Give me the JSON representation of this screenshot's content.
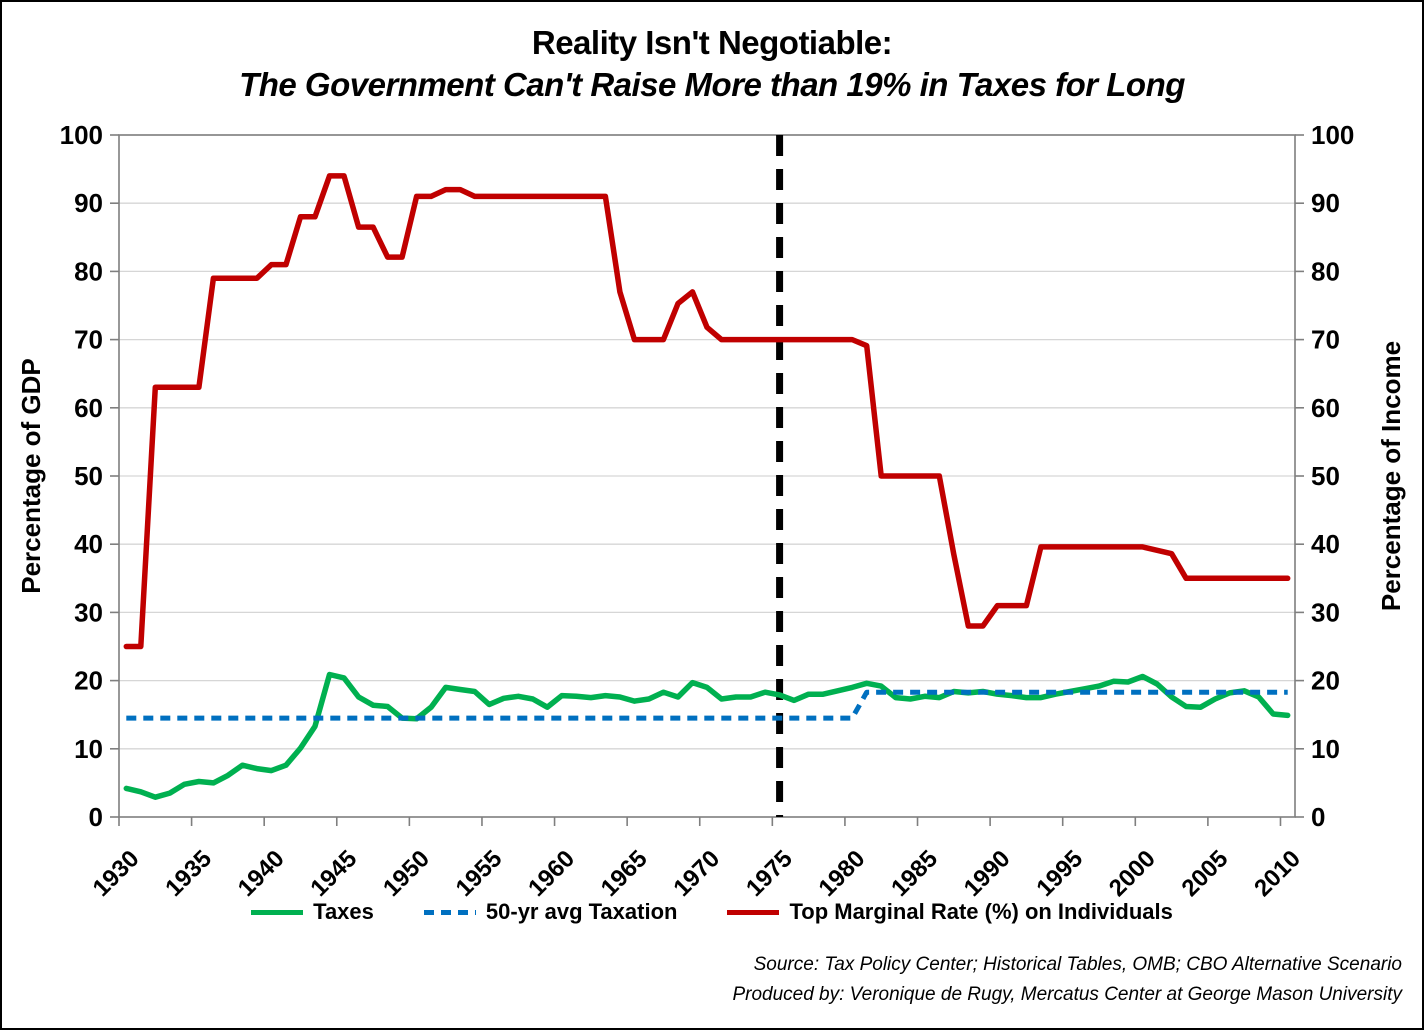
{
  "chart_data": {
    "type": "line",
    "title_line1": "Reality Isn't Negotiable:",
    "title_line2": "The Government Can't Raise More than 19% in Taxes for Long",
    "ylabel_left": "Percentage of GDP",
    "ylabel_right": "Percentage of Income",
    "ylim": [
      0,
      100
    ],
    "ytick_step": 10,
    "grid": "horizontal",
    "legend_position": "bottom",
    "x_ticks": [
      1930,
      1935,
      1940,
      1945,
      1950,
      1955,
      1960,
      1965,
      1970,
      1975,
      1980,
      1985,
      1990,
      1995,
      2000,
      2005,
      2010
    ],
    "years": [
      1930,
      1931,
      1932,
      1933,
      1934,
      1935,
      1936,
      1937,
      1938,
      1939,
      1940,
      1941,
      1942,
      1943,
      1944,
      1945,
      1946,
      1947,
      1948,
      1949,
      1950,
      1951,
      1952,
      1953,
      1954,
      1955,
      1956,
      1957,
      1958,
      1959,
      1960,
      1961,
      1962,
      1963,
      1964,
      1965,
      1966,
      1967,
      1968,
      1969,
      1970,
      1971,
      1972,
      1973,
      1974,
      1975,
      1976,
      1977,
      1978,
      1979,
      1980,
      1981,
      1982,
      1983,
      1984,
      1985,
      1986,
      1987,
      1988,
      1989,
      1990,
      1991,
      1992,
      1993,
      1994,
      1995,
      1996,
      1997,
      1998,
      1999,
      2000,
      2001,
      2002,
      2003,
      2004,
      2005,
      2006,
      2007,
      2008,
      2009,
      2010
    ],
    "series": [
      {
        "name": "Taxes",
        "color": "#00B050",
        "style": "solid",
        "values": [
          4.2,
          3.7,
          2.9,
          3.5,
          4.8,
          5.2,
          5.0,
          6.1,
          7.6,
          7.1,
          6.8,
          7.6,
          10.1,
          13.3,
          20.9,
          20.4,
          17.6,
          16.4,
          16.2,
          14.5,
          14.4,
          16.1,
          19.0,
          18.7,
          18.4,
          16.5,
          17.4,
          17.7,
          17.3,
          16.1,
          17.8,
          17.7,
          17.5,
          17.8,
          17.6,
          17.0,
          17.3,
          18.3,
          17.6,
          19.7,
          19.0,
          17.3,
          17.6,
          17.6,
          18.3,
          17.9,
          17.1,
          18.0,
          18.0,
          18.5,
          19.0,
          19.6,
          19.2,
          17.5,
          17.3,
          17.7,
          17.5,
          18.4,
          18.2,
          18.4,
          18.0,
          17.8,
          17.5,
          17.5,
          18.0,
          18.4,
          18.8,
          19.2,
          19.9,
          19.8,
          20.6,
          19.5,
          17.6,
          16.2,
          16.1,
          17.3,
          18.2,
          18.5,
          17.6,
          15.1,
          14.9
        ]
      },
      {
        "name": "50-yr avg Taxation",
        "color": "#0070C0",
        "style": "dashed",
        "values": [
          14.5,
          14.5,
          14.5,
          14.5,
          14.5,
          14.5,
          14.5,
          14.5,
          14.5,
          14.5,
          14.5,
          14.5,
          14.5,
          14.5,
          14.5,
          14.5,
          14.5,
          14.5,
          14.5,
          14.5,
          14.5,
          14.5,
          14.5,
          14.5,
          14.5,
          14.5,
          14.5,
          14.5,
          14.5,
          14.5,
          14.5,
          14.5,
          14.5,
          14.5,
          14.5,
          14.5,
          14.5,
          14.5,
          14.5,
          14.5,
          14.5,
          14.5,
          14.5,
          14.5,
          14.5,
          14.5,
          14.5,
          14.5,
          14.5,
          14.5,
          14.5,
          18.3,
          18.3,
          18.3,
          18.3,
          18.3,
          18.3,
          18.3,
          18.3,
          18.3,
          18.3,
          18.3,
          18.3,
          18.3,
          18.3,
          18.3,
          18.3,
          18.3,
          18.3,
          18.3,
          18.3,
          18.3,
          18.3,
          18.3,
          18.3,
          18.3,
          18.3,
          18.3,
          18.3,
          18.3,
          18.3
        ]
      },
      {
        "name": "Top Marginal Rate (%) on Individuals",
        "color": "#C00000",
        "style": "solid",
        "values": [
          25,
          25,
          63,
          63,
          63,
          63,
          79,
          79,
          79,
          79,
          81,
          81,
          88,
          88,
          94,
          94,
          86.5,
          86.5,
          82.1,
          82.1,
          91,
          91,
          92,
          92,
          91,
          91,
          91,
          91,
          91,
          91,
          91,
          91,
          91,
          91,
          77,
          70,
          70,
          70,
          75.3,
          77,
          71.8,
          70,
          70,
          70,
          70,
          70,
          70,
          70,
          70,
          70,
          70,
          69.1,
          50,
          50,
          50,
          50,
          50,
          38.5,
          28,
          28,
          31,
          31,
          31,
          39.6,
          39.6,
          39.6,
          39.6,
          39.6,
          39.6,
          39.6,
          39.6,
          39.1,
          38.6,
          35,
          35,
          35,
          35,
          35,
          35,
          35,
          35
        ]
      }
    ],
    "annotations": {
      "vline_year": 1975,
      "vline_color": "#000000",
      "vline_style": "dashed"
    },
    "source_line1": "Source: Tax Policy Center; Historical Tables, OMB; CBO Alternative Scenario",
    "source_line2": "Produced by: Veronique de Rugy, Mercatus Center at George Mason University"
  }
}
